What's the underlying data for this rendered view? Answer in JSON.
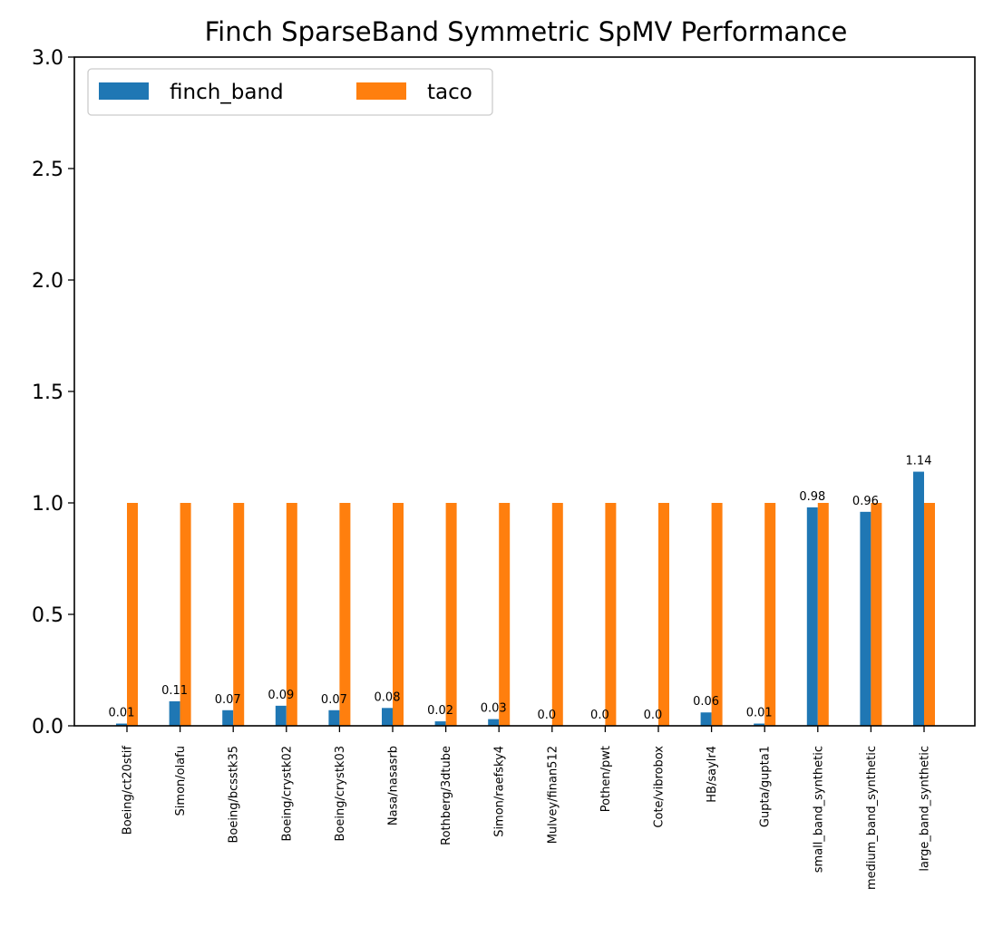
{
  "chart_data": {
    "type": "bar",
    "title": "Finch SparseBand Symmetric SpMV Performance",
    "xlabel": "",
    "ylabel": "",
    "ylim": [
      0,
      3.0
    ],
    "yticks": [
      "0.0",
      "0.5",
      "1.0",
      "1.5",
      "2.0",
      "2.5",
      "3.0"
    ],
    "grid": false,
    "legend_position": "top-left",
    "categories": [
      "Boeing/ct20stif",
      "Simon/olafu",
      "Boeing/bcsstk35",
      "Boeing/crystk02",
      "Boeing/crystk03",
      "Nasa/nasasrb",
      "Rothberg/3dtube",
      "Simon/raefsky4",
      "Mulvey/finan512",
      "Pothen/pwt",
      "Cote/vibrobox",
      "HB/saylr4",
      "Gupta/gupta1",
      "small_band_synthetic",
      "medium_band_synthetic",
      "large_band_synthetic"
    ],
    "series": [
      {
        "name": "finch_band",
        "color": "#1f77b4",
        "values": [
          0.01,
          0.11,
          0.07,
          0.09,
          0.07,
          0.08,
          0.02,
          0.03,
          0.0,
          0.0,
          0.0,
          0.06,
          0.01,
          0.98,
          0.96,
          1.14
        ],
        "labels": [
          "0.01",
          "0.11",
          "0.07",
          "0.09",
          "0.07",
          "0.08",
          "0.02",
          "0.03",
          "0.0",
          "0.0",
          "0.0",
          "0.06",
          "0.01",
          "0.98",
          "0.96",
          "1.14"
        ]
      },
      {
        "name": "taco",
        "color": "#ff7f0e",
        "values": [
          1.0,
          1.0,
          1.0,
          1.0,
          1.0,
          1.0,
          1.0,
          1.0,
          1.0,
          1.0,
          1.0,
          1.0,
          1.0,
          1.0,
          1.0,
          1.0
        ]
      }
    ]
  }
}
